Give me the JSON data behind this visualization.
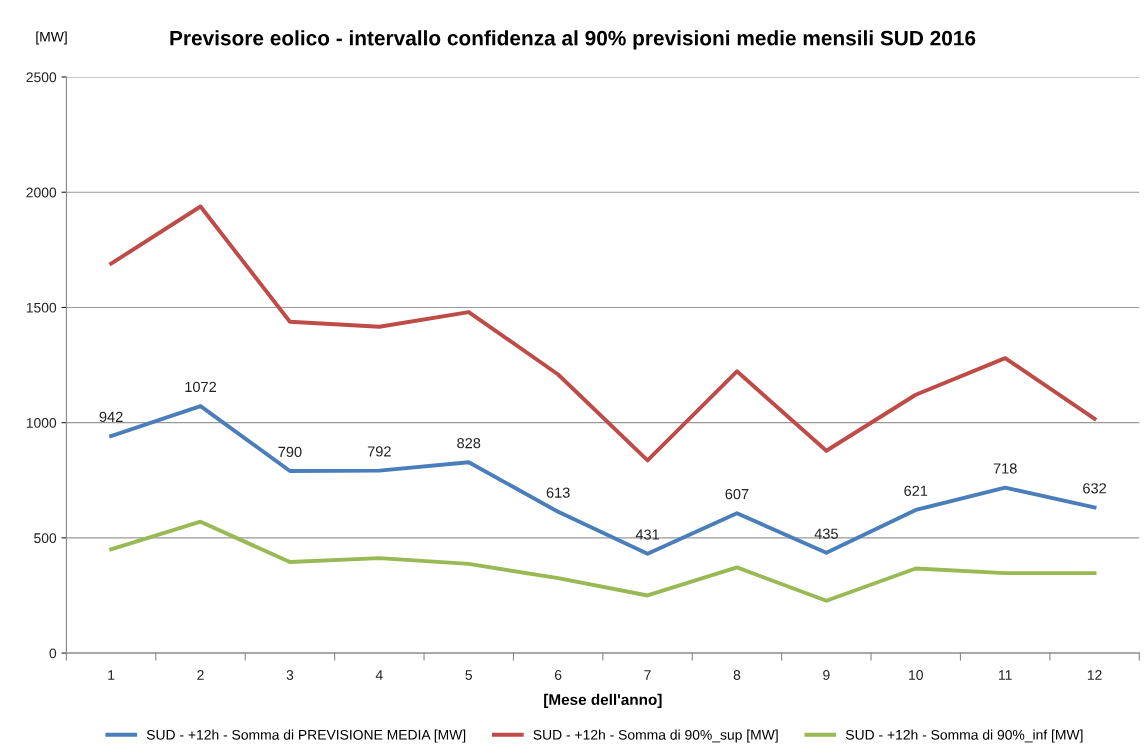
{
  "chart_data": {
    "type": "line",
    "title": "Previsore eolico - intervallo confidenza al 90% previsioni medie mensili SUD 2016",
    "ylabel": "[MW]",
    "xlabel": "[Mese dell'anno]",
    "categories": [
      "1",
      "2",
      "3",
      "4",
      "5",
      "6",
      "7",
      "8",
      "9",
      "10",
      "11",
      "12"
    ],
    "series": [
      {
        "name": "SUD - +12h - Somma di PREVISIONE MEDIA [MW]",
        "color": "#4a7ebb",
        "values": [
          942,
          1072,
          790,
          792,
          828,
          613,
          431,
          607,
          435,
          621,
          718,
          632
        ],
        "value_labels": [
          "942",
          "1072",
          "790",
          "792",
          "828",
          "613",
          "431",
          "607",
          "435",
          "621",
          "718",
          "632"
        ]
      },
      {
        "name": "SUD - +12h - Somma di 90%_sup [MW]",
        "color": "#be4b48",
        "values": [
          1690,
          1938,
          1438,
          1416,
          1480,
          1209,
          836,
          1223,
          878,
          1121,
          1280,
          1017
        ]
      },
      {
        "name": "SUD - +12h - Somma di 90%_inf [MW]",
        "color": "#98b954",
        "values": [
          450,
          570,
          395,
          412,
          387,
          325,
          250,
          372,
          227,
          367,
          347,
          347
        ]
      }
    ],
    "ylim": [
      0,
      2500
    ],
    "yticks": [
      0,
      500,
      1000,
      1500,
      2000,
      2500
    ],
    "grid": "y",
    "legend": "bottom",
    "marker": "none",
    "line_style": "solid"
  }
}
